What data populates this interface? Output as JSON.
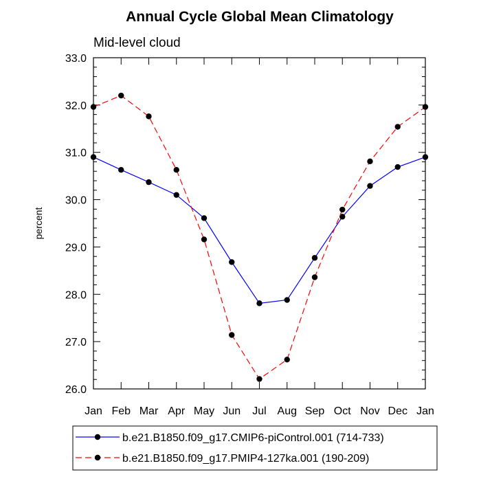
{
  "chart_data": {
    "type": "line",
    "title": "Annual Cycle Global Mean Climatology",
    "subtitle": "Mid-level cloud",
    "xlabel": "",
    "ylabel": "percent",
    "categories": [
      "Jan",
      "Feb",
      "Mar",
      "Apr",
      "May",
      "Jun",
      "Jul",
      "Aug",
      "Sep",
      "Oct",
      "Nov",
      "Dec",
      "Jan"
    ],
    "ylim": [
      26.0,
      33.0
    ],
    "yticks": [
      26.0,
      27.0,
      28.0,
      29.0,
      30.0,
      31.0,
      32.0,
      33.0
    ],
    "ytick_labels": [
      "26.0",
      "27.0",
      "28.0",
      "29.0",
      "30.0",
      "31.0",
      "32.0",
      "33.0"
    ],
    "grid": false,
    "legend_position": "bottom",
    "series": [
      {
        "name": "b.e21.B1850.f09_g17.CMIP6-piControl.001 (714-733)",
        "color": "#0000ff",
        "dash": "solid",
        "values": [
          30.9,
          30.63,
          30.37,
          30.1,
          29.61,
          28.68,
          27.81,
          27.88,
          28.77,
          29.64,
          30.29,
          30.69,
          30.9
        ]
      },
      {
        "name": "b.e21.B1850.f09_g17.PMIP4-127ka.001 (190-209)",
        "color": "#ff0000",
        "dash": "dashed",
        "values": [
          31.96,
          32.2,
          31.76,
          30.63,
          29.16,
          27.14,
          26.21,
          26.62,
          28.36,
          29.79,
          30.81,
          31.54,
          31.96
        ]
      }
    ]
  }
}
